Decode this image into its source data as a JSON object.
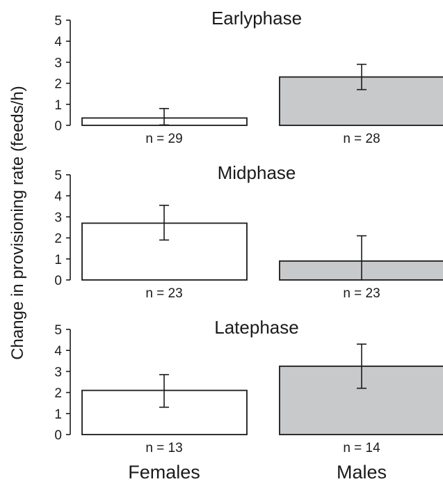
{
  "chart_data": {
    "type": "bar",
    "ylabel": "Change in provisioning rate (feeds/h)",
    "ylim": [
      0,
      5
    ],
    "yticks": [
      0,
      1,
      2,
      3,
      4,
      5
    ],
    "categories": [
      "Females",
      "Males"
    ],
    "colors": {
      "Females": "#ffffff",
      "Males": "#c8c9cb",
      "stroke": "#1a1a1a"
    },
    "panels": [
      {
        "title": "Earlyphase",
        "values": [
          0.35,
          2.3
        ],
        "err_low": [
          0.02,
          1.7
        ],
        "err_high": [
          0.8,
          2.9
        ],
        "n_labels": [
          "n = 29",
          "n = 28"
        ]
      },
      {
        "title": "Midphase",
        "values": [
          2.7,
          0.9
        ],
        "err_low": [
          1.9,
          0.0
        ],
        "err_high": [
          3.55,
          2.1
        ],
        "n_labels": [
          "n = 23",
          "n = 23"
        ]
      },
      {
        "title": "Latephase",
        "values": [
          2.1,
          3.25
        ],
        "err_low": [
          1.3,
          2.2
        ],
        "err_high": [
          2.85,
          4.3
        ],
        "n_labels": [
          "n = 13",
          "n = 14"
        ]
      }
    ]
  }
}
